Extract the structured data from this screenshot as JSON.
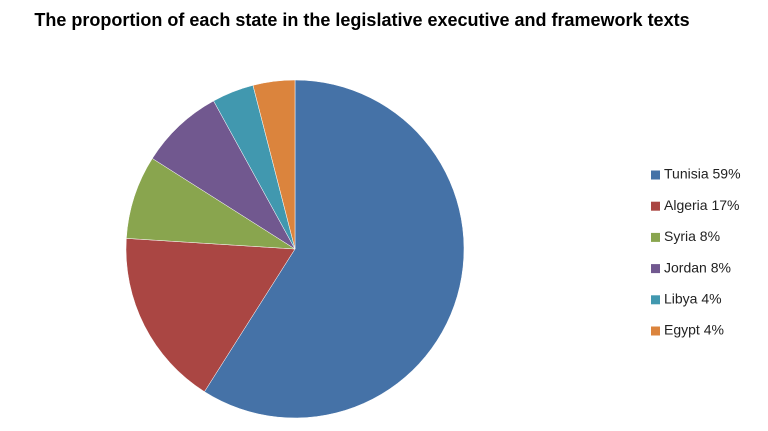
{
  "chart_data": {
    "type": "pie",
    "title": "The proportion of each state in the legislative executive and framework texts",
    "categories": [
      "Tunisia 59%",
      "Algeria 17%",
      "Syria 8%",
      "Jordan 8%",
      "Libya 4%",
      "Egypt 4%"
    ],
    "values": [
      59,
      17,
      8,
      8,
      4,
      4
    ],
    "colors": [
      "#4572a7",
      "#aa4643",
      "#89a54e",
      "#71588f",
      "#4198af",
      "#db843d"
    ],
    "legend": "right"
  }
}
